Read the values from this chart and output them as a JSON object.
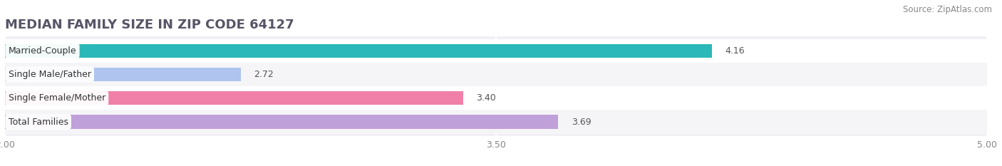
{
  "title": "MEDIAN FAMILY SIZE IN ZIP CODE 64127",
  "source": "Source: ZipAtlas.com",
  "categories": [
    "Married-Couple",
    "Single Male/Father",
    "Single Female/Mother",
    "Total Families"
  ],
  "values": [
    4.16,
    2.72,
    3.4,
    3.69
  ],
  "bar_colors": [
    "#2ab8b8",
    "#b0c4f0",
    "#f080a8",
    "#c0a0d8"
  ],
  "xlim": [
    2.0,
    5.0
  ],
  "xticks": [
    2.0,
    3.5,
    5.0
  ],
  "bar_height": 0.58,
  "figsize": [
    14.06,
    2.33
  ],
  "dpi": 100,
  "title_fontsize": 13,
  "source_fontsize": 8.5,
  "label_fontsize": 9,
  "value_fontsize": 9,
  "tick_fontsize": 9,
  "background_color": "#ffffff",
  "plot_bg_color": "#f0f0f5"
}
